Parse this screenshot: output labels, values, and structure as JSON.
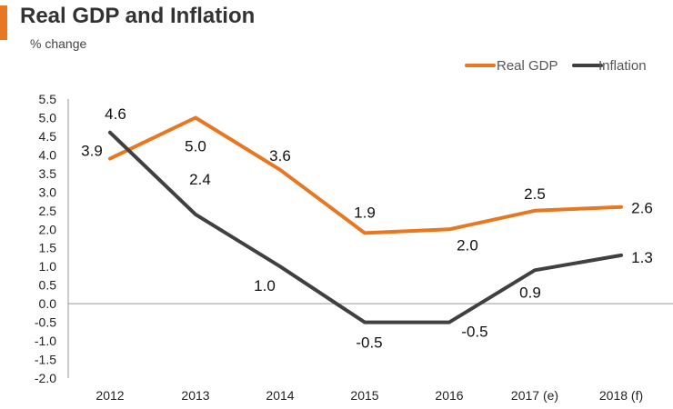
{
  "header": {
    "title": "Real GDP and Inflation",
    "subtitle": "% change",
    "accent_color": "#e87722"
  },
  "chart_data": {
    "type": "line",
    "title": "Real GDP and Inflation",
    "ylabel": "% change",
    "xlabel": "",
    "categories": [
      "2012",
      "2013",
      "2014",
      "2015",
      "2016",
      "2017 (e)",
      "2018 (f)"
    ],
    "ylim": [
      -2.0,
      5.5
    ],
    "yticks": [
      "5.5",
      "5.0",
      "4.5",
      "4.0",
      "3.5",
      "3.0",
      "2.5",
      "2.0",
      "1.5",
      "1.0",
      "0.5",
      "0.0",
      "-0.5",
      "-1.0",
      "-1.5",
      "-2.0"
    ],
    "legend_position": "top-right",
    "grid": false,
    "series": [
      {
        "name": "Real GDP",
        "color": "#e87722",
        "values": [
          3.9,
          5.0,
          3.6,
          1.9,
          2.0,
          2.5,
          2.6
        ],
        "labels": [
          "3.9",
          "5.0",
          "3.6",
          "1.9",
          "2.0",
          "2.5",
          "2.6"
        ]
      },
      {
        "name": "Inflation",
        "color": "#404040",
        "values": [
          4.6,
          2.4,
          1.0,
          -0.5,
          -0.5,
          0.9,
          1.3
        ],
        "labels": [
          "4.6",
          "2.4",
          "1.0",
          "-0.5",
          "-0.5",
          "0.9",
          "1.3"
        ]
      }
    ]
  }
}
